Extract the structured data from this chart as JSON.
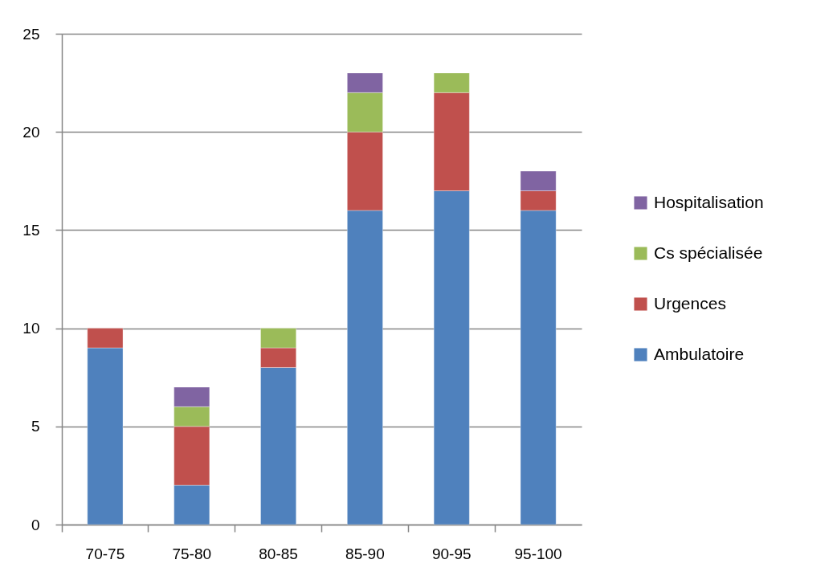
{
  "chart_data": {
    "type": "bar",
    "stacked": true,
    "categories": [
      "70-75",
      "75-80",
      "80-85",
      "85-90",
      "90-95",
      "95-100"
    ],
    "series": [
      {
        "name": "Ambulatoire",
        "color": "#4f81bd",
        "values": [
          9,
          2,
          8,
          16,
          17,
          16
        ]
      },
      {
        "name": "Urgences",
        "color": "#c0504d",
        "values": [
          1,
          3,
          1,
          4,
          5,
          1
        ]
      },
      {
        "name": "Cs spécialisée",
        "color": "#9bbb59",
        "values": [
          0,
          1,
          1,
          2,
          1,
          0
        ]
      },
      {
        "name": "Hospitalisation",
        "color": "#8064a2",
        "values": [
          0,
          1,
          0,
          1,
          0,
          1
        ]
      }
    ],
    "ylim": [
      0,
      25
    ],
    "yticks": [
      0,
      5,
      10,
      15,
      20,
      25
    ],
    "grid": "y",
    "legend": "right"
  }
}
